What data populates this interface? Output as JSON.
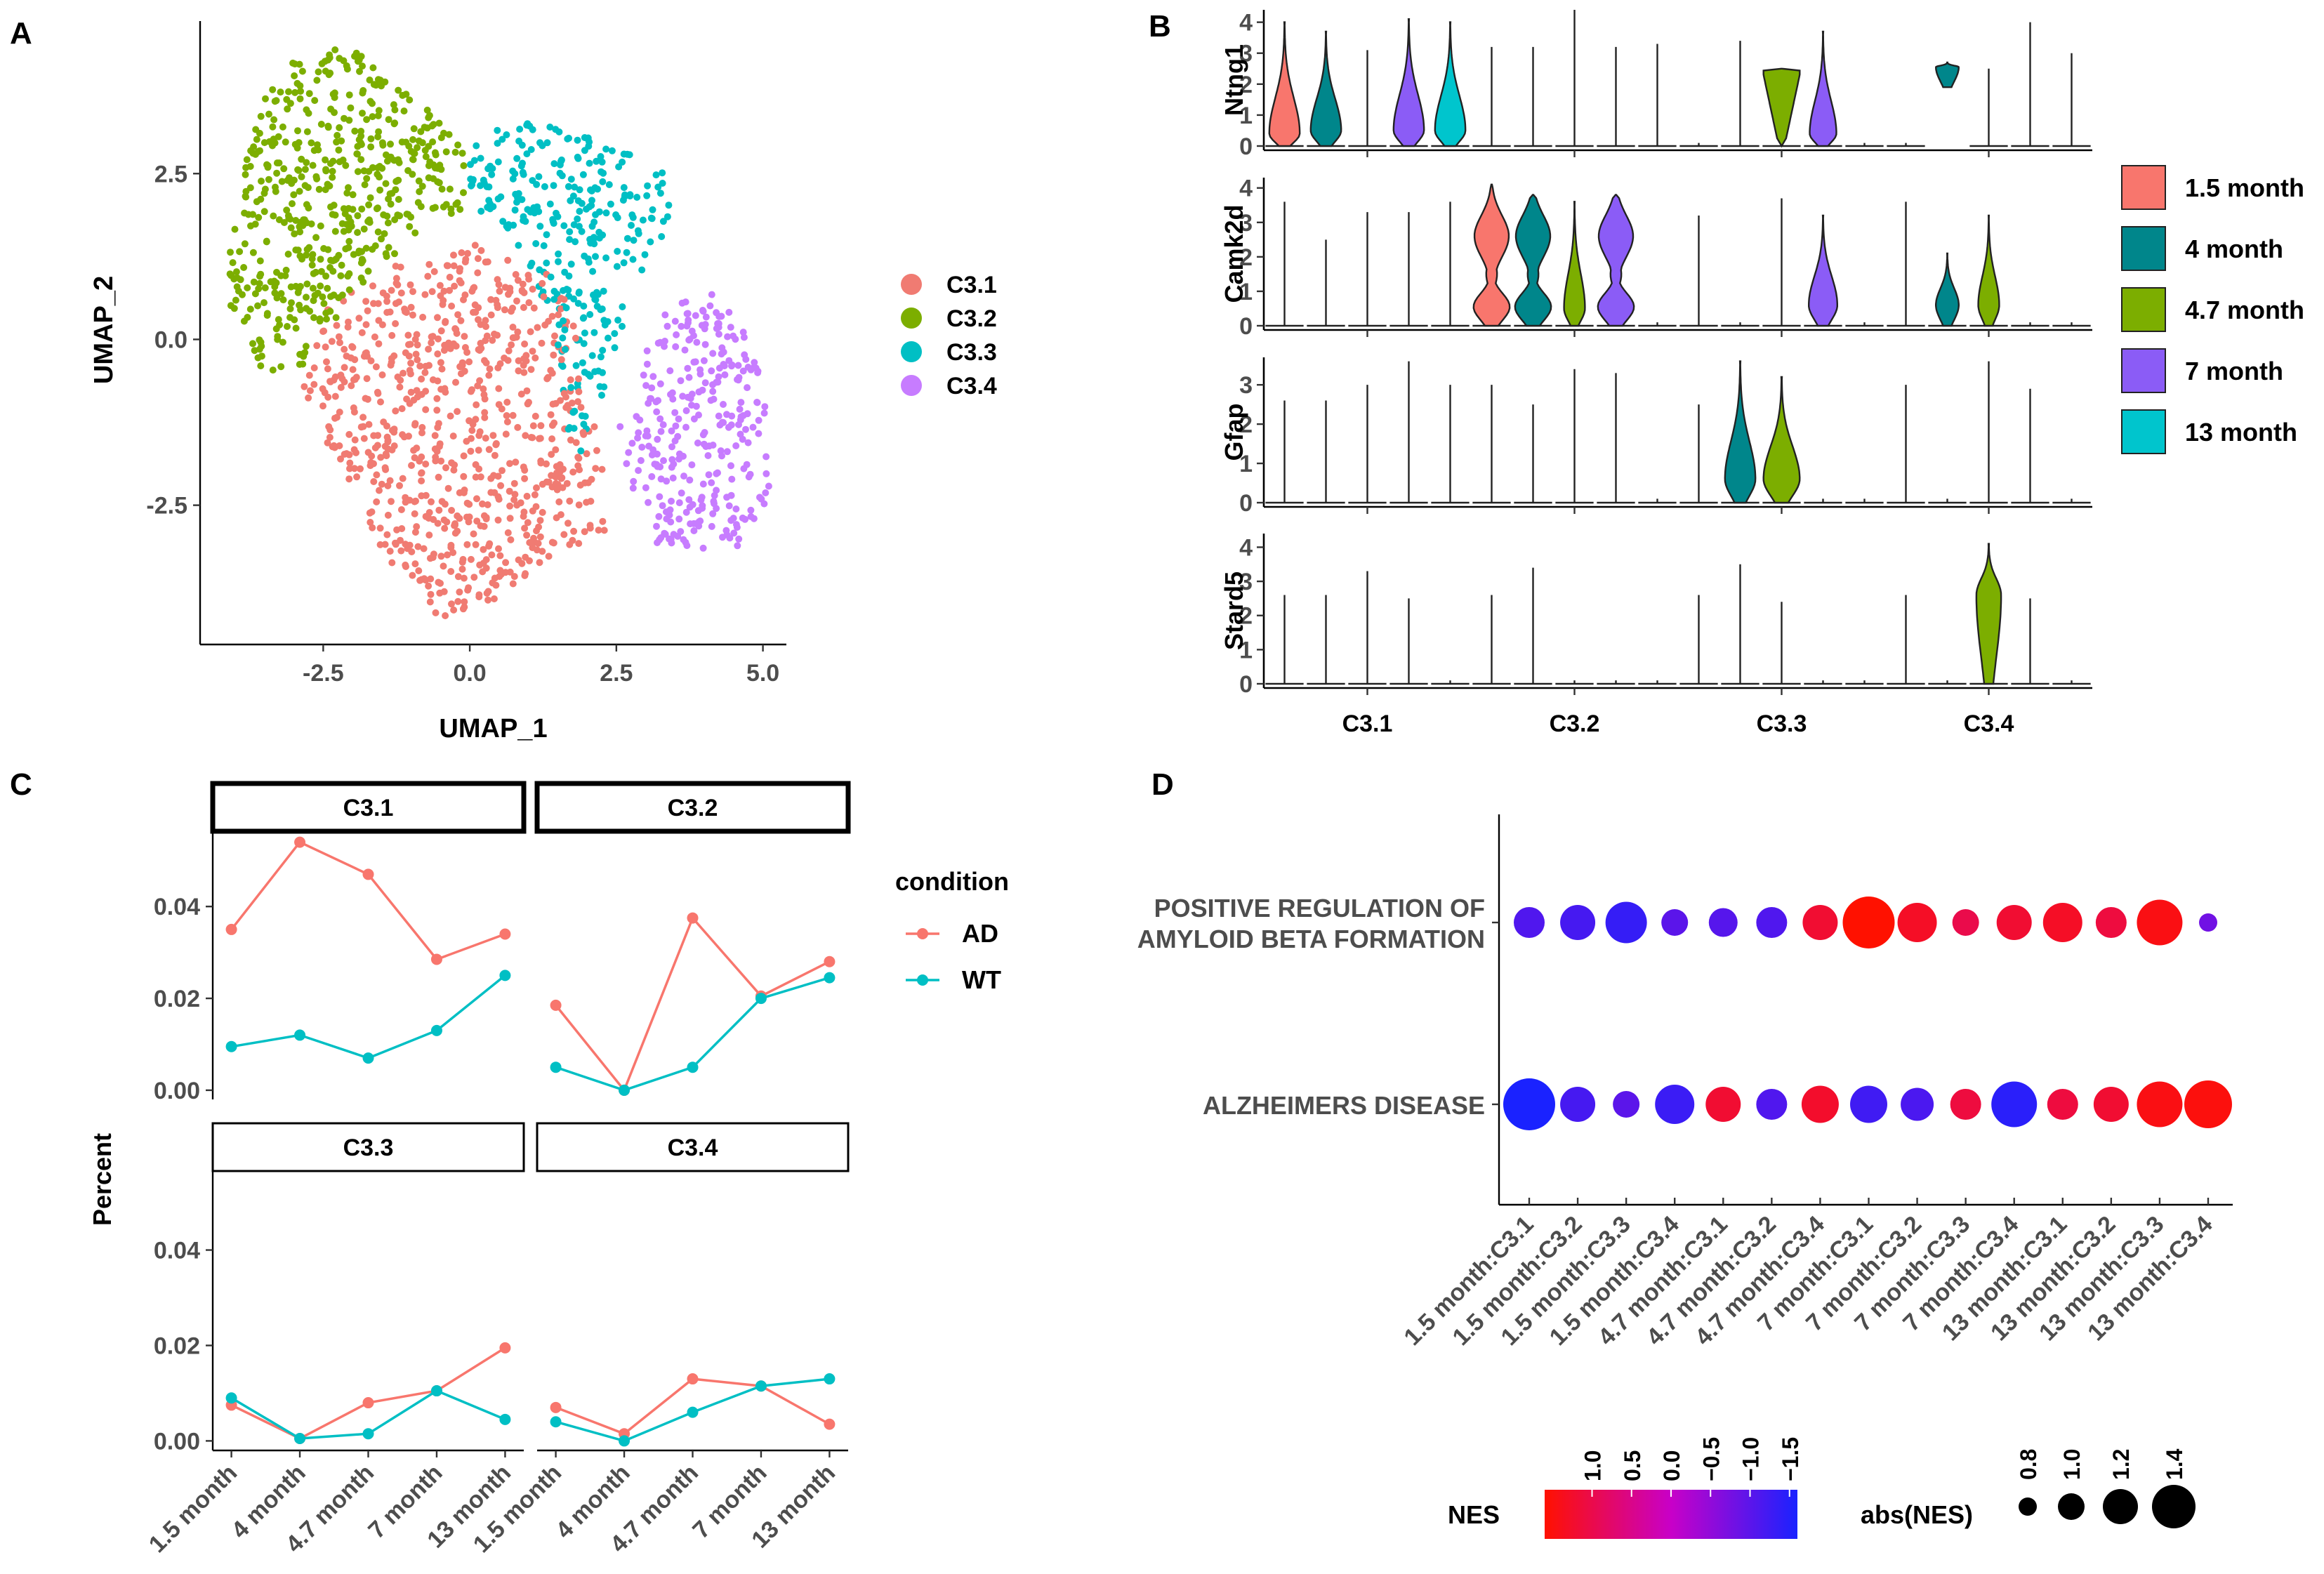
{
  "chart_data": [
    {
      "panel": "A",
      "type": "scatter",
      "xlabel": "UMAP_1",
      "ylabel": "UMAP_2",
      "xticks": [
        "-2.5",
        "0.0",
        "2.5",
        "5.0"
      ],
      "xtick_values": [
        -2.5,
        0,
        2.5,
        5
      ],
      "yticks": [
        "-2.5",
        "0.0",
        "2.5"
      ],
      "ytick_values": [
        -2.5,
        0,
        2.5
      ],
      "xlim": [
        -4.6,
        5.4
      ],
      "ylim": [
        -4.6,
        4.8
      ],
      "legend": [
        {
          "name": "C3.1",
          "color": "#F07B72"
        },
        {
          "name": "C3.2",
          "color": "#7CAE00"
        },
        {
          "name": "C3.3",
          "color": "#00BFC4"
        },
        {
          "name": "C3.4",
          "color": "#C77CFF"
        }
      ],
      "clusters": [
        {
          "name": "C3.1",
          "points_drawn": 760
        },
        {
          "name": "C3.2",
          "points_drawn": 520
        },
        {
          "name": "C3.3",
          "points_drawn": 300
        },
        {
          "name": "C3.4",
          "points_drawn": 300
        }
      ]
    },
    {
      "panel": "B",
      "type": "violin",
      "genes": [
        "Ntng1",
        "Camk2d",
        "Gfap",
        "Stard5"
      ],
      "clusters": [
        "C3.1",
        "C3.2",
        "C3.3",
        "C3.4"
      ],
      "groups": [
        "1.5 month",
        "4 month",
        "4.7 month",
        "7 month",
        "13 month"
      ],
      "group_colors": [
        "#F8766D",
        "#00868B",
        "#7CAE00",
        "#8B5CF6",
        "#00C5CD"
      ],
      "yticks": {
        "Ntng1": [
          "0",
          "1",
          "2",
          "3",
          "4"
        ],
        "Camk2d": [
          "0",
          "1",
          "2",
          "3",
          "4"
        ],
        "Gfap": [
          "0",
          "1",
          "2",
          "3"
        ],
        "Stard5": [
          "0",
          "1",
          "2",
          "3",
          "4"
        ]
      },
      "ymax": {
        "Ntng1": 4.4,
        "Camk2d": 4.3,
        "Gfap": 3.7,
        "Stard5": 4.4
      },
      "violins": {
        "Ntng1": [
          [
            {
              "w": 0.8,
              "max": 4.0,
              "mode": 0.4
            },
            {
              "w": 0.8,
              "max": 3.7,
              "mode": 0.5
            },
            {
              "w": 0,
              "max": 3.1
            },
            {
              "w": 0.8,
              "max": 4.1,
              "mode": 0.5
            },
            {
              "w": 0.8,
              "max": 4.0,
              "mode": 0.5
            }
          ],
          [
            {
              "w": 0,
              "max": 3.2
            },
            {
              "w": 0,
              "max": 3.2
            },
            {
              "w": 0,
              "max": 4.4
            },
            {
              "w": 0,
              "max": 3.2
            },
            {
              "w": 0,
              "max": 3.3
            }
          ],
          [
            {
              "w": 0,
              "max": 0.1
            },
            {
              "w": 0,
              "max": 3.4
            },
            {
              "w": 0.95,
              "max": 2.5,
              "mode": 2.3,
              "flat": true
            },
            {
              "w": 0.7,
              "max": 3.7,
              "mode": 0.4
            },
            {
              "w": 0,
              "max": 0.1
            }
          ],
          [
            {
              "w": 0,
              "max": 0.1
            },
            {
              "w": 0.6,
              "max": 2.7,
              "min": 1.9,
              "mode": 2.55
            },
            {
              "w": 0,
              "max": 2.5
            },
            {
              "w": 0,
              "max": 4.0
            },
            {
              "w": 0,
              "max": 3.0
            }
          ]
        ],
        "Camk2d": [
          [
            {
              "w": 0,
              "max": 3.6
            },
            {
              "w": 0,
              "max": 2.5
            },
            {
              "w": 0,
              "max": 3.3
            },
            {
              "w": 0,
              "max": 3.3
            },
            {
              "w": 0,
              "max": 3.6
            }
          ],
          [
            {
              "w": 0.95,
              "max": 4.1,
              "mode": 2.6,
              "bimodal": true
            },
            {
              "w": 0.95,
              "max": 3.8,
              "mode": 2.6,
              "bimodal": true
            },
            {
              "w": 0.55,
              "max": 3.6,
              "mode": 0.5
            },
            {
              "w": 0.95,
              "max": 3.8,
              "mode": 2.6,
              "bimodal": true
            },
            {
              "w": 0,
              "max": 0.1
            }
          ],
          [
            {
              "w": 0,
              "max": 3.2
            },
            {
              "w": 0,
              "max": 0.1
            },
            {
              "w": 0,
              "max": 3.7
            },
            {
              "w": 0.75,
              "max": 3.2,
              "mode": 0.6
            },
            {
              "w": 0,
              "max": 0.1
            }
          ],
          [
            {
              "w": 0,
              "max": 3.6
            },
            {
              "w": 0.6,
              "max": 2.1,
              "mode": 0.6
            },
            {
              "w": 0.55,
              "max": 3.2,
              "mode": 0.6
            },
            {
              "w": 0,
              "max": 0.1
            },
            {
              "w": 0,
              "max": 0.1
            }
          ]
        ],
        "Gfap": [
          [
            {
              "w": 0,
              "max": 2.6
            },
            {
              "w": 0,
              "max": 2.6
            },
            {
              "w": 0,
              "max": 3.0
            },
            {
              "w": 0,
              "max": 3.6
            },
            {
              "w": 0,
              "max": 3.0
            }
          ],
          [
            {
              "w": 0,
              "max": 3.0
            },
            {
              "w": 0,
              "max": 2.5
            },
            {
              "w": 0,
              "max": 3.4
            },
            {
              "w": 0,
              "max": 3.3
            },
            {
              "w": 0,
              "max": 0.1
            }
          ],
          [
            {
              "w": 0,
              "max": 2.5
            },
            {
              "w": 0.8,
              "max": 3.6,
              "mode": 0.6
            },
            {
              "w": 0.95,
              "max": 3.2,
              "mode": 0.6
            },
            {
              "w": 0,
              "max": 0.1
            },
            {
              "w": 0,
              "max": 0.1
            }
          ],
          [
            {
              "w": 0,
              "max": 3.0
            },
            {
              "w": 0,
              "max": 0.1
            },
            {
              "w": 0,
              "max": 3.6
            },
            {
              "w": 0,
              "max": 2.9
            },
            {
              "w": 0,
              "max": 0.1
            }
          ]
        ],
        "Stard5": [
          [
            {
              "w": 0,
              "max": 2.6
            },
            {
              "w": 0,
              "max": 2.6
            },
            {
              "w": 0,
              "max": 3.3
            },
            {
              "w": 0,
              "max": 2.5
            },
            {
              "w": 0,
              "max": 0.1
            }
          ],
          [
            {
              "w": 0,
              "max": 2.6
            },
            {
              "w": 0,
              "max": 3.4
            },
            {
              "w": 0,
              "max": 0.1
            },
            {
              "w": 0,
              "max": 0.1
            },
            {
              "w": 0,
              "max": 0.1
            }
          ],
          [
            {
              "w": 0,
              "max": 2.6
            },
            {
              "w": 0,
              "max": 3.5
            },
            {
              "w": 0,
              "max": 2.4
            },
            {
              "w": 0,
              "max": 0.1
            },
            {
              "w": 0,
              "max": 0.1
            }
          ],
          [
            {
              "w": 0,
              "max": 2.6
            },
            {
              "w": 0,
              "max": 0.1
            },
            {
              "w": 0.65,
              "max": 4.1,
              "mode": 2.6
            },
            {
              "w": 0,
              "max": 2.5
            },
            {
              "w": 0,
              "max": 0.1
            }
          ]
        ]
      }
    },
    {
      "panel": "C",
      "type": "line",
      "ylabel": "Percent",
      "categories": [
        "1.5 month",
        "4 month",
        "4.7 month",
        "7 month",
        "13 month"
      ],
      "yticks": [
        "0.00",
        "0.02",
        "0.04"
      ],
      "ytick_values": [
        0,
        0.02,
        0.04
      ],
      "ylim": [
        -0.002,
        0.057
      ],
      "legend_title": "condition",
      "legend": [
        {
          "name": "AD",
          "color": "#F8766D"
        },
        {
          "name": "WT",
          "color": "#00BFC4"
        }
      ],
      "facets": [
        {
          "title": "C3.1",
          "series": [
            {
              "name": "AD",
              "values": [
                0.035,
                0.054,
                0.047,
                0.0285,
                0.034
              ]
            },
            {
              "name": "WT",
              "values": [
                0.0095,
                0.012,
                0.007,
                0.013,
                0.025
              ]
            }
          ]
        },
        {
          "title": "C3.2",
          "series": [
            {
              "name": "AD",
              "values": [
                0.0185,
                0.0,
                0.0375,
                0.0205,
                0.028
              ]
            },
            {
              "name": "WT",
              "values": [
                0.005,
                0.0,
                0.005,
                0.02,
                0.0245
              ]
            }
          ]
        },
        {
          "title": "C3.3",
          "series": [
            {
              "name": "AD",
              "values": [
                0.0075,
                0.0005,
                0.008,
                0.0105,
                0.0195
              ]
            },
            {
              "name": "WT",
              "values": [
                0.009,
                0.0005,
                0.0015,
                0.0105,
                0.0045
              ]
            }
          ]
        },
        {
          "title": "C3.4",
          "series": [
            {
              "name": "AD",
              "values": [
                0.007,
                0.0015,
                0.013,
                0.0115,
                0.0035
              ]
            },
            {
              "name": "WT",
              "values": [
                0.004,
                0.0,
                0.006,
                0.0115,
                0.013
              ]
            }
          ]
        }
      ]
    },
    {
      "panel": "D",
      "type": "dot",
      "rows": [
        "POSITIVE REGULATION OF\nAMYLOID BETA FORMATION",
        "ALZHEIMERS DISEASE"
      ],
      "columns": [
        "1.5 month:C3.1",
        "1.5 month:C3.2",
        "1.5 month:C3.3",
        "1.5 month:C3.4",
        "4.7 month:C3.1",
        "4.7 month:C3.2",
        "4.7 month:C3.4",
        "7 month:C3.1",
        "7 month:C3.2",
        "7 month:C3.3",
        "7 month:C3.4",
        "13 month:C3.1",
        "13 month:C3.2",
        "13 month:C3.3",
        "13 month:C3.4"
      ],
      "nes": [
        [
          -1.1,
          -1.2,
          -1.35,
          -1.0,
          -1.05,
          -1.1,
          1.2,
          1.6,
          1.3,
          1.0,
          1.2,
          1.3,
          1.1,
          1.45,
          -0.8
        ],
        [
          -1.6,
          -1.2,
          -1.0,
          -1.3,
          1.2,
          -1.1,
          1.25,
          -1.25,
          -1.15,
          1.1,
          -1.45,
          1.1,
          1.2,
          1.45,
          1.5
        ]
      ],
      "color_legend_title": "NES",
      "color_ticks": [
        "1.0",
        "0.5",
        "0.0",
        "−0.5",
        "−1.0",
        "−1.5"
      ],
      "color_tick_values": [
        1.0,
        0.5,
        0.0,
        -0.5,
        -1.0,
        -1.5
      ],
      "color_range": [
        1.6,
        -1.6
      ],
      "color_high": "#FF1100",
      "color_mid": "#C800C8",
      "color_low": "#1A22FF",
      "size_legend_title": "abs(NES)",
      "size_ticks": [
        "0.8",
        "1.0",
        "1.2",
        "1.4"
      ],
      "size_values": [
        0.8,
        1.0,
        1.2,
        1.4
      ]
    }
  ],
  "panel_labels": [
    "A",
    "B",
    "C",
    "D"
  ]
}
